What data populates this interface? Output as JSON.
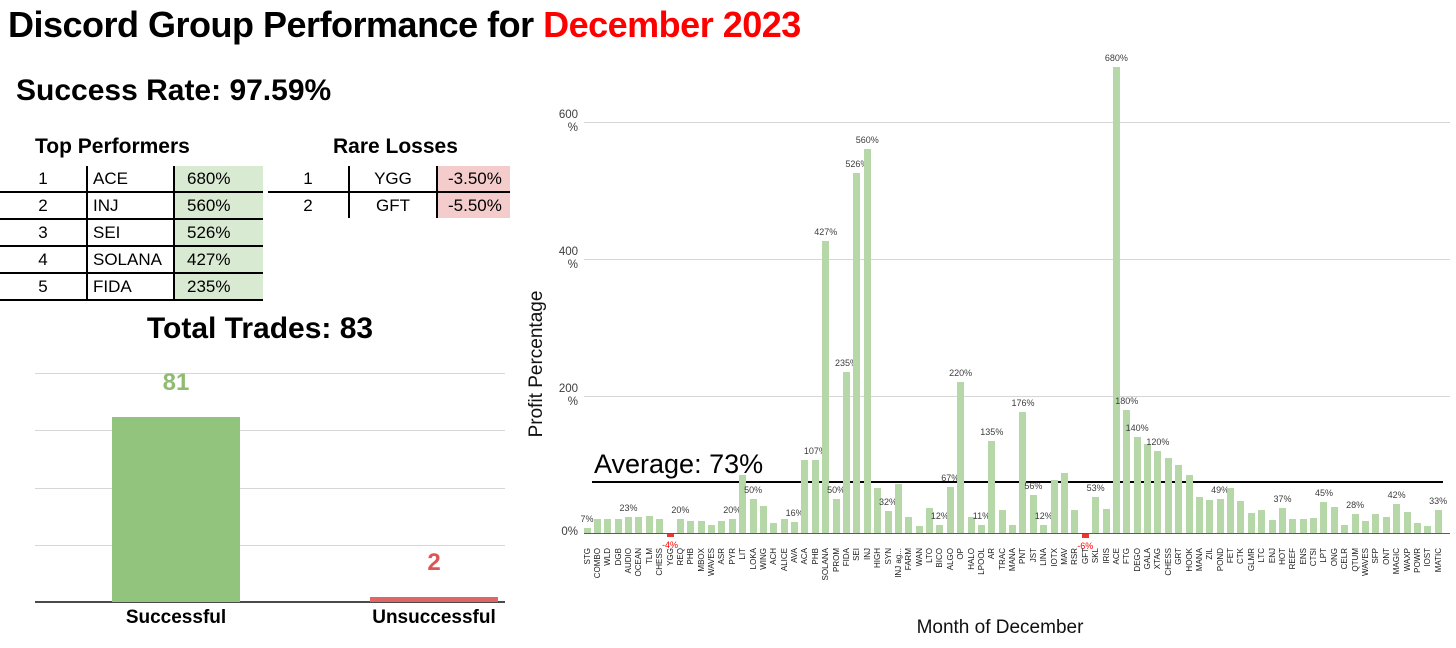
{
  "header": {
    "title_black": "Discord Group Performance for ",
    "title_red": "December 2023"
  },
  "success_rate": {
    "text": "Success Rate: 97.59%"
  },
  "top_performers": {
    "title": "Top Performers",
    "rows": [
      [
        "1",
        "ACE",
        "680%"
      ],
      [
        "2",
        "INJ",
        "560%"
      ],
      [
        "3",
        "SEI",
        "526%"
      ],
      [
        "4",
        "SOLANA",
        "427%"
      ],
      [
        "5",
        "FIDA",
        "235%"
      ]
    ]
  },
  "rare_losses": {
    "title": "Rare Losses",
    "rows": [
      [
        "1",
        "YGG",
        "-3.50%"
      ],
      [
        "2",
        "GFT",
        "-5.50%"
      ]
    ]
  },
  "colors": {
    "accent_red": "#ff0000",
    "positive_cell_bg": "#d9ead3",
    "negative_cell_bg": "#f4cccc"
  },
  "chart_data": [
    {
      "type": "bar",
      "title": "Total Trades: 83",
      "categories": [
        "Successful",
        "Unsuccessful"
      ],
      "values": [
        81,
        2
      ],
      "value_labels": [
        "81",
        "2"
      ],
      "bar_colors": [
        "#93c47d",
        "#e06666"
      ],
      "value_label_colors": [
        "#8fbc72",
        "#dd5555"
      ],
      "ylim": [
        0,
        100
      ],
      "gridline_values": [
        25,
        50,
        75,
        100
      ],
      "legend": "none"
    },
    {
      "type": "bar",
      "xlabel": "Month of December",
      "ylabel": "Profit Percentage",
      "ylim": [
        -10,
        700
      ],
      "ytick_values": [
        0,
        200,
        400,
        600
      ],
      "ytick_suffix": "%",
      "average": {
        "value": 73,
        "label": "Average: 73%"
      },
      "bar_colors": {
        "positive": "#b6d7a8",
        "negative": "#e8392f"
      },
      "value_label_colors": {
        "positive": "#3d3d3d",
        "negative": "#ff0000"
      },
      "points": [
        {
          "c": "STG",
          "v": 7,
          "l": "7%"
        },
        {
          "c": "COMBO",
          "v": 20
        },
        {
          "c": "WLD",
          "v": 20
        },
        {
          "c": "DGB",
          "v": 21
        },
        {
          "c": "AUDIO",
          "v": 23,
          "l": "23%"
        },
        {
          "c": "OCEAN",
          "v": 23
        },
        {
          "c": "TLM",
          "v": 25
        },
        {
          "c": "CHESS",
          "v": 21
        },
        {
          "c": "YGG",
          "v": -4,
          "l": "-4%"
        },
        {
          "c": "REQ",
          "v": 20,
          "l": "20%"
        },
        {
          "c": "PHB",
          "v": 17
        },
        {
          "c": "MBOX",
          "v": 17
        },
        {
          "c": "WAVES",
          "v": 12
        },
        {
          "c": "ASR",
          "v": 17
        },
        {
          "c": "PYR",
          "v": 20,
          "l": "20%"
        },
        {
          "c": "LIT",
          "v": 85
        },
        {
          "c": "LOKA",
          "v": 50,
          "l": "50%"
        },
        {
          "c": "WING",
          "v": 40
        },
        {
          "c": "ACH",
          "v": 15
        },
        {
          "c": "ALICE",
          "v": 21
        },
        {
          "c": "AVA",
          "v": 16,
          "l": "16%"
        },
        {
          "c": "ACA",
          "v": 107
        },
        {
          "c": "PHB",
          "v": 107,
          "l": "107%"
        },
        {
          "c": "SOLANA",
          "v": 427,
          "l": "427%"
        },
        {
          "c": "PROM",
          "v": 50,
          "l": "50%"
        },
        {
          "c": "FIDA",
          "v": 235,
          "l": "235%"
        },
        {
          "c": "SEI",
          "v": 526,
          "l": "526%"
        },
        {
          "c": "INJ",
          "v": 560,
          "l": "560%"
        },
        {
          "c": "HIGH",
          "v": 65
        },
        {
          "c": "SYN",
          "v": 32,
          "l": "32%"
        },
        {
          "c": "INJ ag...",
          "v": 72
        },
        {
          "c": "FARM",
          "v": 24
        },
        {
          "c": "WAN",
          "v": 10
        },
        {
          "c": "LTO",
          "v": 36
        },
        {
          "c": "BICO",
          "v": 12,
          "l": "12%"
        },
        {
          "c": "ALGO",
          "v": 67,
          "l": "67%"
        },
        {
          "c": "OP",
          "v": 220,
          "l": "220%"
        },
        {
          "c": "HALO",
          "v": 24
        },
        {
          "c": "LPOOL",
          "v": 11,
          "l": "11%"
        },
        {
          "c": "AR",
          "v": 135,
          "l": "135%"
        },
        {
          "c": "TRAC",
          "v": 33
        },
        {
          "c": "MANA",
          "v": 11
        },
        {
          "c": "PNT",
          "v": 176,
          "l": "176%"
        },
        {
          "c": "JST",
          "v": 56,
          "l": "56%"
        },
        {
          "c": "LINA",
          "v": 12,
          "l": "12%"
        },
        {
          "c": "IOTX",
          "v": 78
        },
        {
          "c": "MAV",
          "v": 88
        },
        {
          "c": "RSR",
          "v": 33
        },
        {
          "c": "GFT",
          "v": -6,
          "l": "-6%"
        },
        {
          "c": "SKL",
          "v": 53,
          "l": "53%"
        },
        {
          "c": "IRIS",
          "v": 35
        },
        {
          "c": "ACE",
          "v": 680,
          "l": "680%"
        },
        {
          "c": "FTG",
          "v": 180,
          "l": "180%"
        },
        {
          "c": "DEGO",
          "v": 140,
          "l": "140%"
        },
        {
          "c": "GALA",
          "v": 130
        },
        {
          "c": "XTAG",
          "v": 120,
          "l": "120%"
        },
        {
          "c": "CHESS",
          "v": 110
        },
        {
          "c": "GRT",
          "v": 100
        },
        {
          "c": "HOOK",
          "v": 85
        },
        {
          "c": "MANA",
          "v": 53
        },
        {
          "c": "ZIL",
          "v": 48
        },
        {
          "c": "POND",
          "v": 49,
          "l": "49%"
        },
        {
          "c": "FET",
          "v": 65
        },
        {
          "c": "CTK",
          "v": 46
        },
        {
          "c": "GLMR",
          "v": 29
        },
        {
          "c": "LTC",
          "v": 34
        },
        {
          "c": "ENJ",
          "v": 19
        },
        {
          "c": "HOT",
          "v": 37,
          "l": "37%"
        },
        {
          "c": "REEF",
          "v": 20
        },
        {
          "c": "ENS",
          "v": 21
        },
        {
          "c": "CTSI",
          "v": 22
        },
        {
          "c": "LPT",
          "v": 45,
          "l": "45%"
        },
        {
          "c": "ONG",
          "v": 38
        },
        {
          "c": "CELR",
          "v": 12
        },
        {
          "c": "QTUM",
          "v": 28,
          "l": "28%"
        },
        {
          "c": "WAVES",
          "v": 18
        },
        {
          "c": "SFP",
          "v": 28
        },
        {
          "c": "ONT",
          "v": 23
        },
        {
          "c": "MAGIC",
          "v": 42,
          "l": "42%"
        },
        {
          "c": "WAXP",
          "v": 31
        },
        {
          "c": "POWR",
          "v": 15
        },
        {
          "c": "IOST",
          "v": 10
        },
        {
          "c": "MATIC",
          "v": 33,
          "l": "33%"
        }
      ]
    }
  ]
}
